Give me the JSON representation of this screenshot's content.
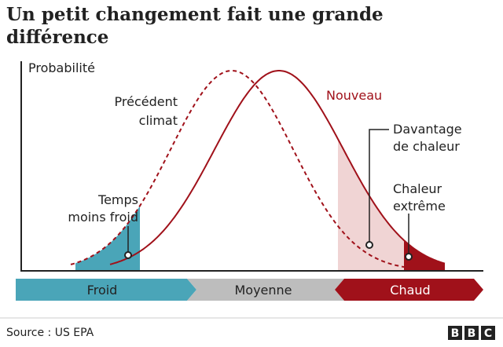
{
  "title": [
    "Un petit changement fait une grande",
    "différence"
  ],
  "y_axis_label": "Probabilité",
  "curves": {
    "previous": [
      "Précédent",
      "climat"
    ],
    "new": "Nouveau"
  },
  "annotations": {
    "more_heat": [
      "Davantage",
      "de chaleur"
    ],
    "extreme_heat": [
      "Chaleur",
      "extrême"
    ],
    "less_cold": [
      "Temps",
      "moins froid"
    ]
  },
  "scale": [
    "Froid",
    "Moyenne",
    "Chaud"
  ],
  "source": "Source : US EPA",
  "logo": [
    "B",
    "B",
    "C"
  ]
}
